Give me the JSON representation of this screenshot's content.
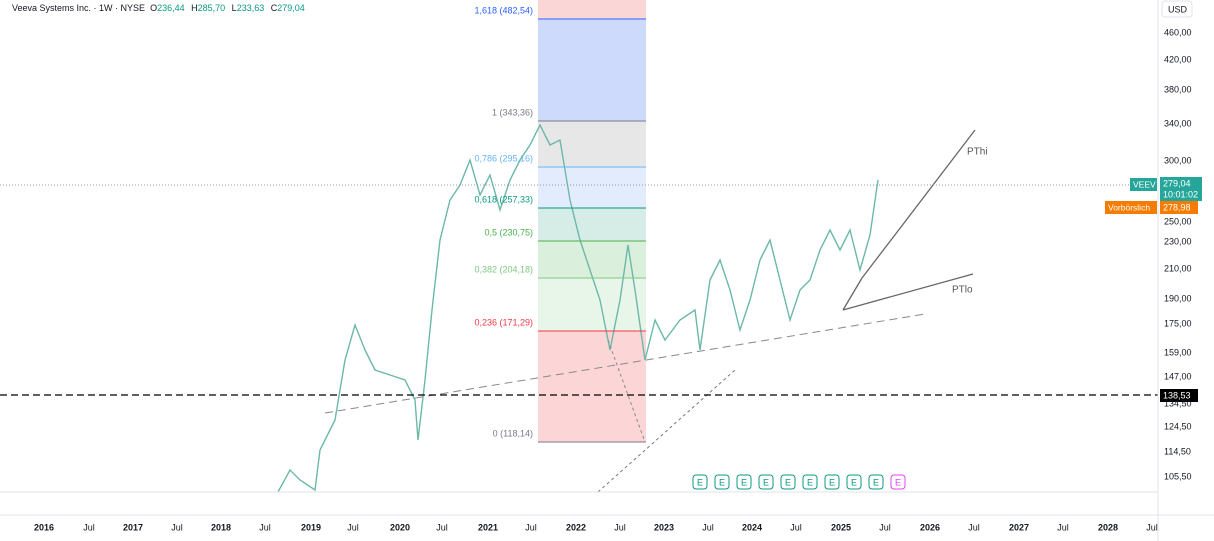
{
  "header": {
    "symbol": "Veeva Systems Inc. · 1W · NYSE",
    "open_key": "O",
    "open": "236,44",
    "high_key": "H",
    "high": "285,70",
    "low_key": "L",
    "low": "233,63",
    "close_key": "C",
    "close": "279,04"
  },
  "price_axis": {
    "currency": "USD",
    "labels": [
      "460,00",
      "420,00",
      "380,00",
      "340,00",
      "300,00",
      "250,00",
      "230,00",
      "210,00",
      "190,00",
      "175,00",
      "159,00",
      "147,00",
      "134,50",
      "124,50",
      "114,50",
      "105,50"
    ]
  },
  "time_axis": {
    "labels": [
      "2016",
      "Jul",
      "2017",
      "Jul",
      "2018",
      "Jul",
      "2019",
      "Jul",
      "2020",
      "Jul",
      "2021",
      "Jul",
      "2022",
      "Jul",
      "2023",
      "Jul",
      "2024",
      "Jul",
      "2025",
      "Jul",
      "2026",
      "Jul",
      "2027",
      "Jul",
      "2028",
      "Jul"
    ]
  },
  "fibonacci": {
    "levels": [
      "1,618 (482,54)",
      "1 (343,36)",
      "0,786 (295,16)",
      "0,618 (257,33)",
      "0,5 (230,75)",
      "0,382 (204,18)",
      "0,236 (171,29)",
      "0 (118,14)"
    ]
  },
  "badges": {
    "symbol": "VEEV",
    "price": "279,04",
    "countdown": "10:01:02",
    "premarket_label": "Vorbörslich",
    "premarket_price": "278,98",
    "line_price": "138,53"
  },
  "annotations": [
    "PThi",
    "PTlo"
  ],
  "earnings": [
    "E",
    "E",
    "E",
    "E",
    "E",
    "E",
    "E",
    "E",
    "E",
    "E"
  ]
}
